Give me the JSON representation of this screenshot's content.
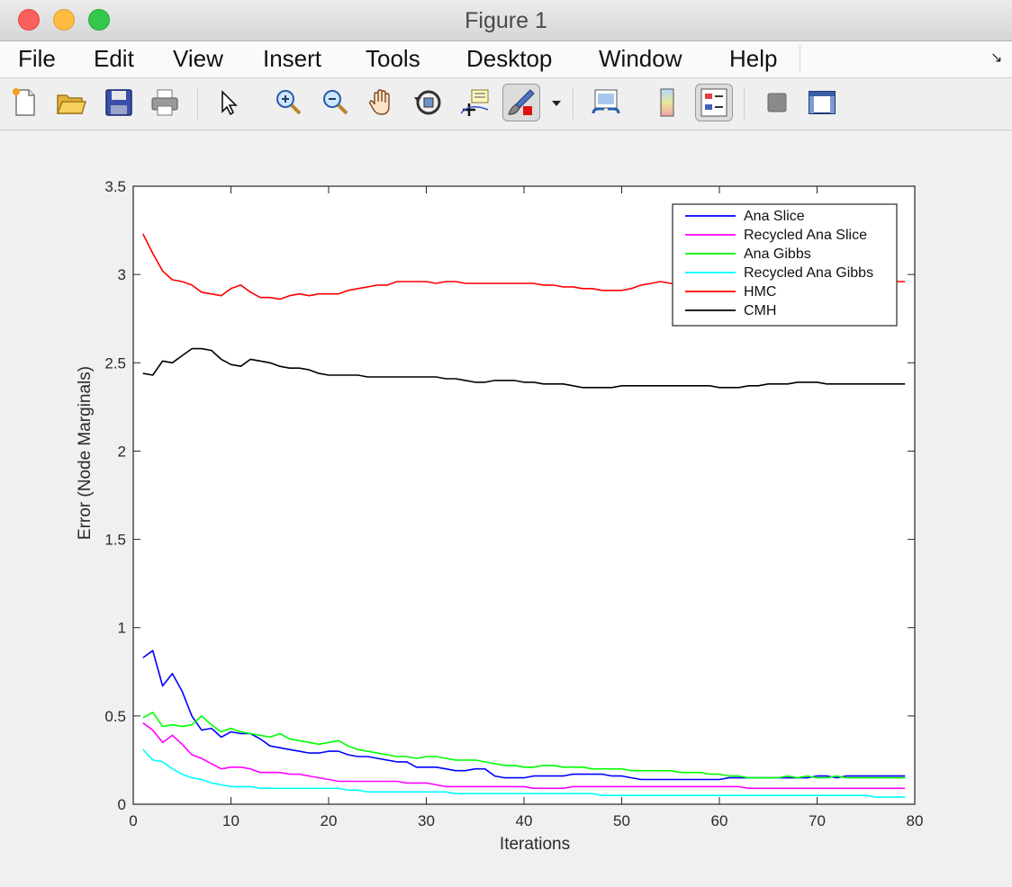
{
  "window": {
    "title": "Figure 1"
  },
  "menubar": {
    "items": [
      "File",
      "Edit",
      "View",
      "Insert",
      "Tools",
      "Desktop",
      "Window",
      "Help"
    ]
  },
  "toolbar": {
    "icons": [
      "new-figure-icon",
      "open-file-icon",
      "save-icon",
      "print-icon",
      "pointer-icon",
      "zoom-in-icon",
      "zoom-out-icon",
      "pan-hand-icon",
      "rotate-3d-icon",
      "data-cursor-icon",
      "brush-icon",
      "dropdown-arrow-icon",
      "link-plot-icon",
      "colorbar-icon",
      "legend-icon",
      "hide-plot-tools-icon",
      "show-plot-tools-icon"
    ]
  },
  "chart_data": {
    "type": "line",
    "title": "",
    "xlabel": "Iterations",
    "ylabel": "Error (Node Marginals)",
    "xlim": [
      0,
      80
    ],
    "ylim": [
      0,
      3.5
    ],
    "xticks": [
      "0",
      "10",
      "20",
      "30",
      "40",
      "50",
      "60",
      "70",
      "80"
    ],
    "yticks": [
      "0",
      "0.5",
      "1",
      "1.5",
      "2",
      "2.5",
      "3",
      "3.5"
    ],
    "grid": false,
    "legend_position": "top-right",
    "x": [
      1,
      2,
      3,
      4,
      5,
      6,
      7,
      8,
      9,
      10,
      11,
      12,
      13,
      14,
      15,
      16,
      17,
      18,
      19,
      20,
      21,
      22,
      23,
      24,
      25,
      26,
      27,
      28,
      29,
      30,
      31,
      32,
      33,
      34,
      35,
      36,
      37,
      38,
      39,
      40,
      41,
      42,
      43,
      44,
      45,
      46,
      47,
      48,
      49,
      50,
      51,
      52,
      53,
      54,
      55,
      56,
      57,
      58,
      59,
      60,
      61,
      62,
      63,
      64,
      65,
      66,
      67,
      68,
      69,
      70,
      71,
      72,
      73,
      74,
      75,
      76,
      77,
      78,
      79
    ],
    "series": [
      {
        "name": "Ana Slice",
        "color": "#0000ff",
        "values": [
          0.83,
          0.87,
          0.67,
          0.74,
          0.64,
          0.5,
          0.42,
          0.43,
          0.38,
          0.41,
          0.4,
          0.4,
          0.37,
          0.33,
          0.32,
          0.31,
          0.3,
          0.29,
          0.29,
          0.3,
          0.3,
          0.28,
          0.27,
          0.27,
          0.26,
          0.25,
          0.24,
          0.24,
          0.21,
          0.21,
          0.21,
          0.2,
          0.19,
          0.19,
          0.2,
          0.2,
          0.16,
          0.15,
          0.15,
          0.15,
          0.16,
          0.16,
          0.16,
          0.16,
          0.17,
          0.17,
          0.17,
          0.17,
          0.16,
          0.16,
          0.15,
          0.14,
          0.14,
          0.14,
          0.14,
          0.14,
          0.14,
          0.14,
          0.14,
          0.14,
          0.15,
          0.15,
          0.15,
          0.15,
          0.15,
          0.15,
          0.15,
          0.15,
          0.15,
          0.16,
          0.16,
          0.15,
          0.16,
          0.16,
          0.16,
          0.16,
          0.16,
          0.16,
          0.16
        ]
      },
      {
        "name": "Recycled Ana Slice",
        "color": "#ff00ff",
        "values": [
          0.46,
          0.42,
          0.35,
          0.39,
          0.34,
          0.28,
          0.26,
          0.23,
          0.2,
          0.21,
          0.21,
          0.2,
          0.18,
          0.18,
          0.18,
          0.17,
          0.17,
          0.16,
          0.15,
          0.14,
          0.13,
          0.13,
          0.13,
          0.13,
          0.13,
          0.13,
          0.13,
          0.12,
          0.12,
          0.12,
          0.11,
          0.1,
          0.1,
          0.1,
          0.1,
          0.1,
          0.1,
          0.1,
          0.1,
          0.1,
          0.09,
          0.09,
          0.09,
          0.09,
          0.1,
          0.1,
          0.1,
          0.1,
          0.1,
          0.1,
          0.1,
          0.1,
          0.1,
          0.1,
          0.1,
          0.1,
          0.1,
          0.1,
          0.1,
          0.1,
          0.1,
          0.1,
          0.09,
          0.09,
          0.09,
          0.09,
          0.09,
          0.09,
          0.09,
          0.09,
          0.09,
          0.09,
          0.09,
          0.09,
          0.09,
          0.09,
          0.09,
          0.09,
          0.09
        ]
      },
      {
        "name": "Ana Gibbs",
        "color": "#00ff00",
        "values": [
          0.49,
          0.52,
          0.44,
          0.45,
          0.44,
          0.45,
          0.5,
          0.45,
          0.41,
          0.43,
          0.41,
          0.4,
          0.39,
          0.38,
          0.4,
          0.37,
          0.36,
          0.35,
          0.34,
          0.35,
          0.36,
          0.33,
          0.31,
          0.3,
          0.29,
          0.28,
          0.27,
          0.27,
          0.26,
          0.27,
          0.27,
          0.26,
          0.25,
          0.25,
          0.25,
          0.24,
          0.23,
          0.22,
          0.22,
          0.21,
          0.21,
          0.22,
          0.22,
          0.21,
          0.21,
          0.21,
          0.2,
          0.2,
          0.2,
          0.2,
          0.19,
          0.19,
          0.19,
          0.19,
          0.19,
          0.18,
          0.18,
          0.18,
          0.17,
          0.17,
          0.16,
          0.16,
          0.15,
          0.15,
          0.15,
          0.15,
          0.16,
          0.15,
          0.16,
          0.15,
          0.15,
          0.16,
          0.15,
          0.15,
          0.15,
          0.15,
          0.15,
          0.15,
          0.15
        ]
      },
      {
        "name": "Recycled Ana Gibbs",
        "color": "#00ffff",
        "values": [
          0.31,
          0.25,
          0.24,
          0.2,
          0.17,
          0.15,
          0.14,
          0.12,
          0.11,
          0.1,
          0.1,
          0.1,
          0.09,
          0.09,
          0.09,
          0.09,
          0.09,
          0.09,
          0.09,
          0.09,
          0.09,
          0.08,
          0.08,
          0.07,
          0.07,
          0.07,
          0.07,
          0.07,
          0.07,
          0.07,
          0.07,
          0.07,
          0.06,
          0.06,
          0.06,
          0.06,
          0.06,
          0.06,
          0.06,
          0.06,
          0.06,
          0.06,
          0.06,
          0.06,
          0.06,
          0.06,
          0.06,
          0.05,
          0.05,
          0.05,
          0.05,
          0.05,
          0.05,
          0.05,
          0.05,
          0.05,
          0.05,
          0.05,
          0.05,
          0.05,
          0.05,
          0.05,
          0.05,
          0.05,
          0.05,
          0.05,
          0.05,
          0.05,
          0.05,
          0.05,
          0.05,
          0.05,
          0.05,
          0.05,
          0.05,
          0.04,
          0.04,
          0.04,
          0.04
        ]
      },
      {
        "name": "HMC",
        "color": "#ff0000",
        "values": [
          3.23,
          3.12,
          3.02,
          2.97,
          2.96,
          2.94,
          2.9,
          2.89,
          2.88,
          2.92,
          2.94,
          2.9,
          2.87,
          2.87,
          2.86,
          2.88,
          2.89,
          2.88,
          2.89,
          2.89,
          2.89,
          2.91,
          2.92,
          2.93,
          2.94,
          2.94,
          2.96,
          2.96,
          2.96,
          2.96,
          2.95,
          2.96,
          2.96,
          2.95,
          2.95,
          2.95,
          2.95,
          2.95,
          2.95,
          2.95,
          2.95,
          2.94,
          2.94,
          2.93,
          2.93,
          2.92,
          2.92,
          2.91,
          2.91,
          2.91,
          2.92,
          2.94,
          2.95,
          2.96,
          2.95,
          2.95,
          2.96,
          2.97,
          2.97,
          2.96,
          2.96,
          2.96,
          2.96,
          2.96,
          2.96,
          2.96,
          2.96,
          2.96,
          2.96,
          2.96,
          2.96,
          2.96,
          2.96,
          2.96,
          2.96,
          2.96,
          2.96,
          2.96,
          2.96
        ]
      },
      {
        "name": "CMH",
        "color": "#000000",
        "values": [
          2.44,
          2.43,
          2.51,
          2.5,
          2.54,
          2.58,
          2.58,
          2.57,
          2.52,
          2.49,
          2.48,
          2.52,
          2.51,
          2.5,
          2.48,
          2.47,
          2.47,
          2.46,
          2.44,
          2.43,
          2.43,
          2.43,
          2.43,
          2.42,
          2.42,
          2.42,
          2.42,
          2.42,
          2.42,
          2.42,
          2.42,
          2.41,
          2.41,
          2.4,
          2.39,
          2.39,
          2.4,
          2.4,
          2.4,
          2.39,
          2.39,
          2.38,
          2.38,
          2.38,
          2.37,
          2.36,
          2.36,
          2.36,
          2.36,
          2.37,
          2.37,
          2.37,
          2.37,
          2.37,
          2.37,
          2.37,
          2.37,
          2.37,
          2.37,
          2.36,
          2.36,
          2.36,
          2.37,
          2.37,
          2.38,
          2.38,
          2.38,
          2.39,
          2.39,
          2.39,
          2.38,
          2.38,
          2.38,
          2.38,
          2.38,
          2.38,
          2.38,
          2.38,
          2.38
        ]
      }
    ]
  }
}
